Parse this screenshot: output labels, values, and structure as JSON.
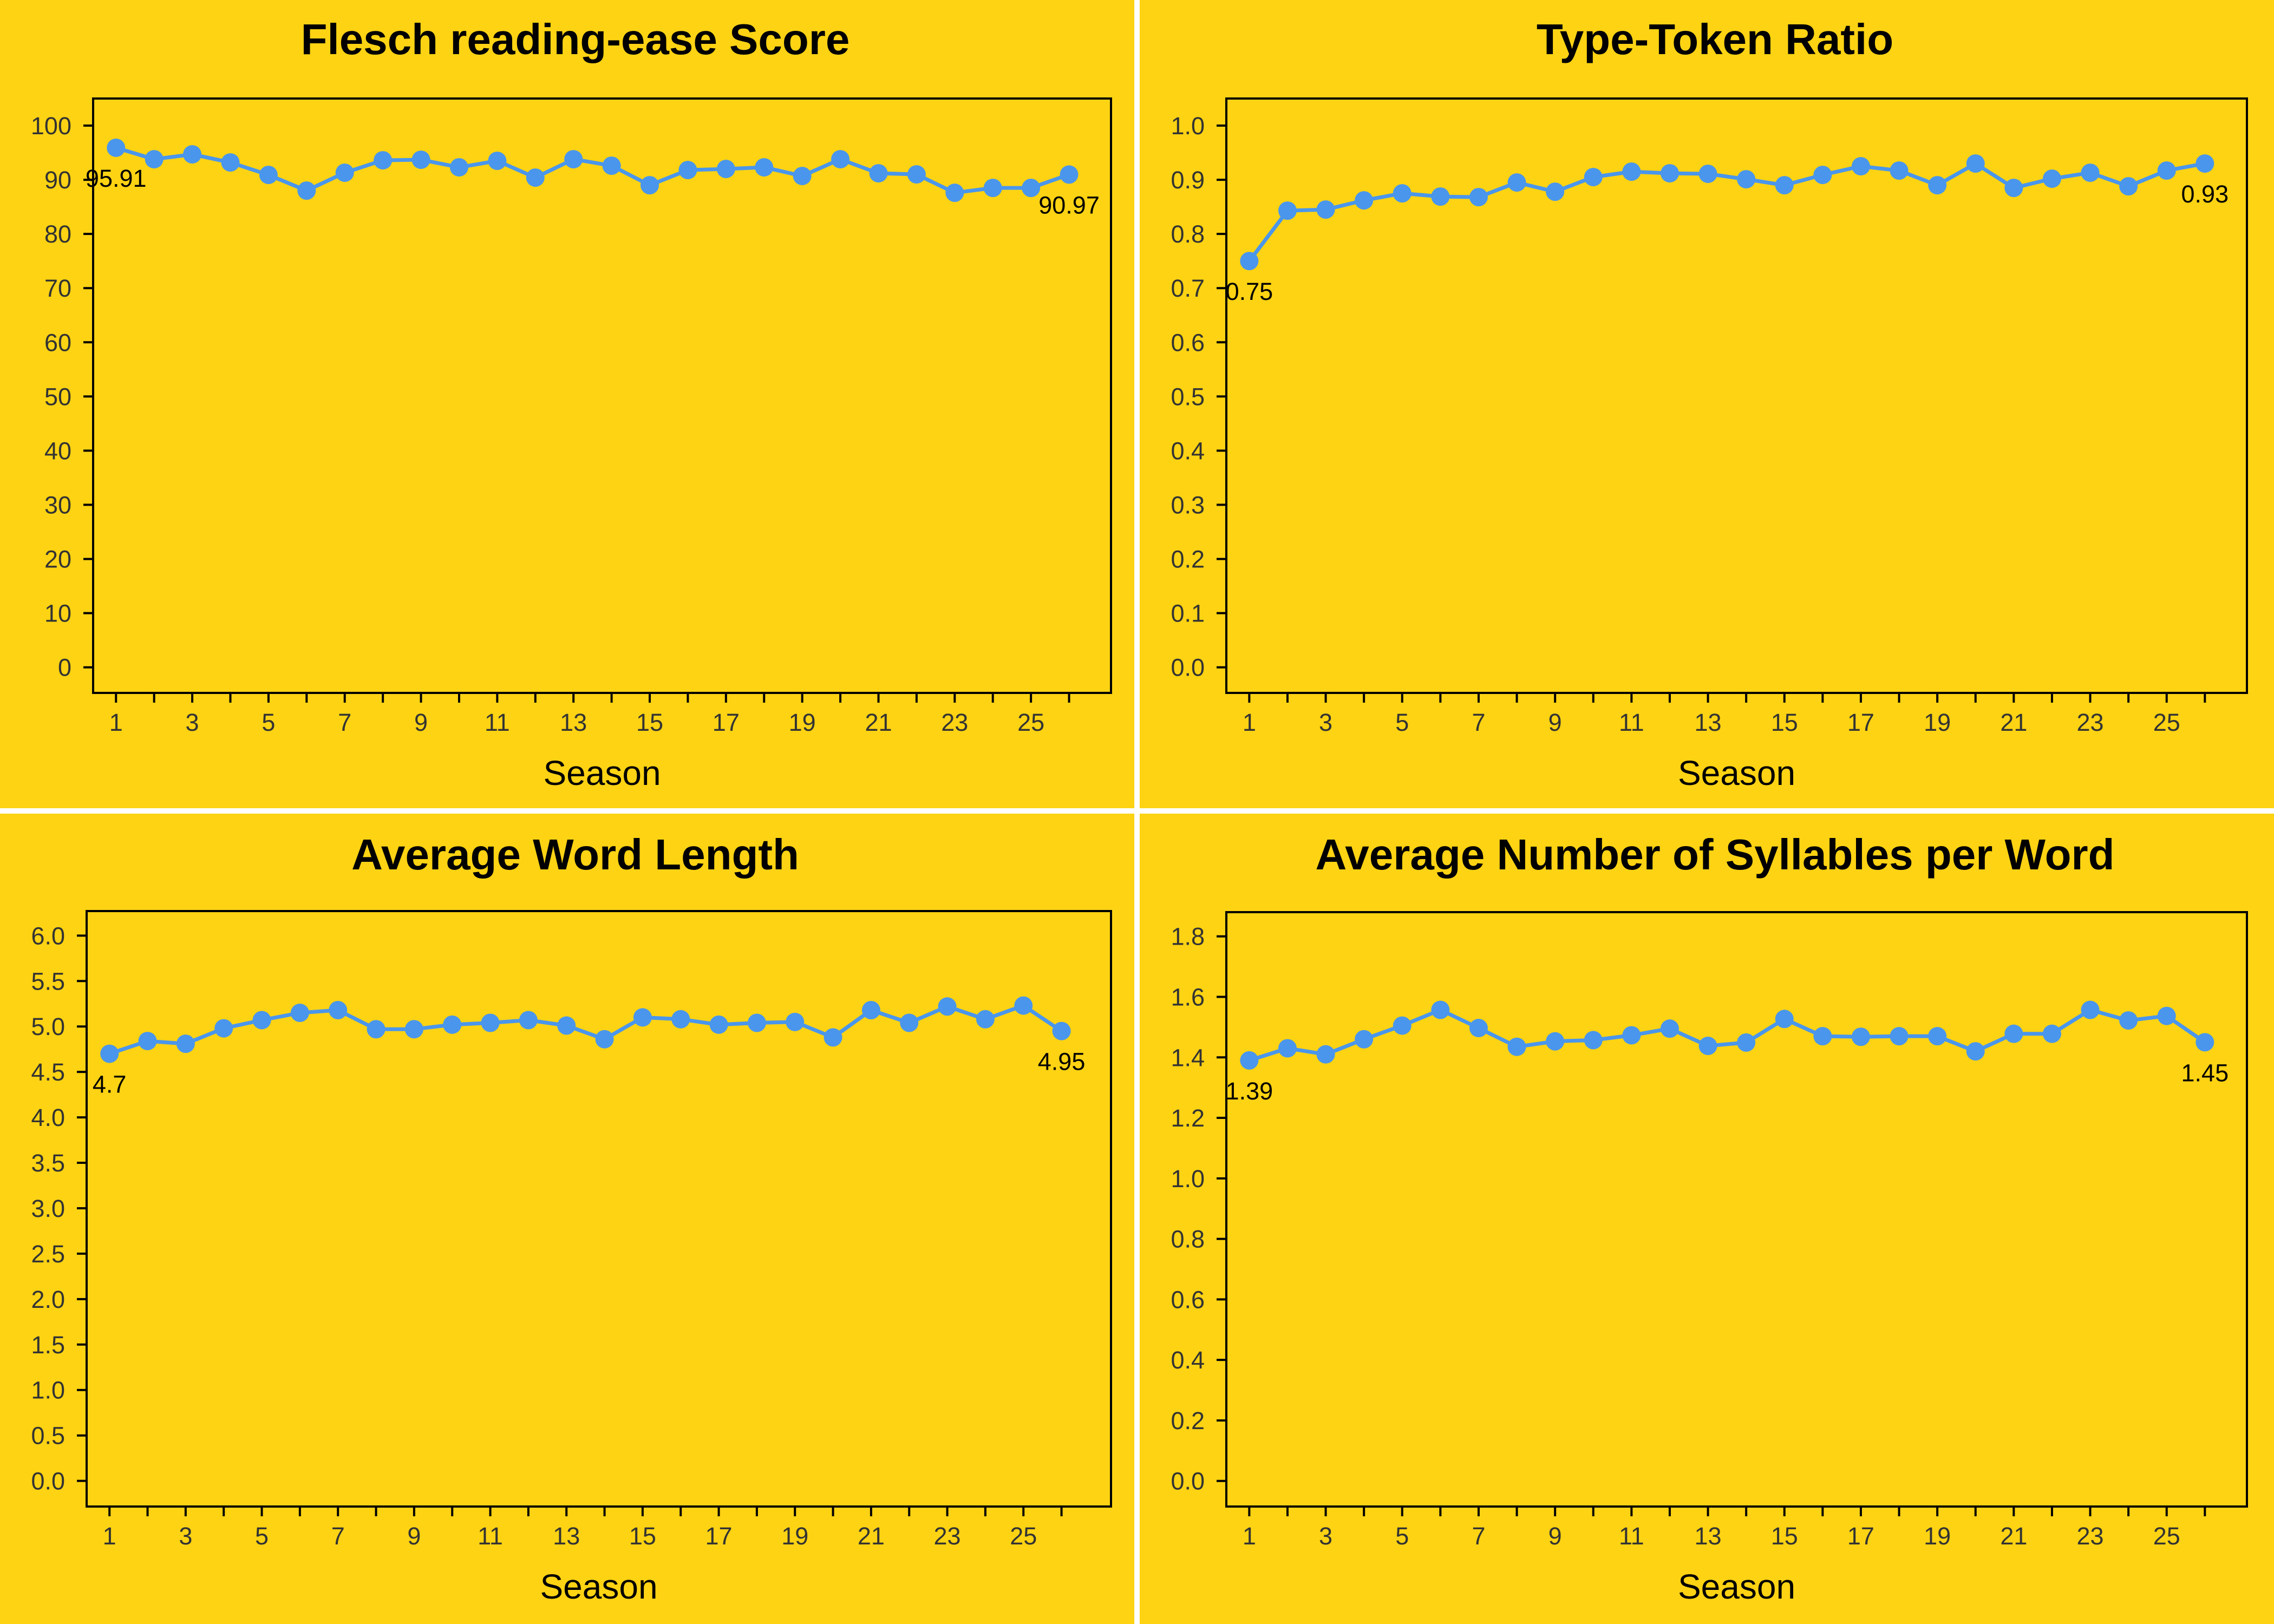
{
  "chart_data": [
    {
      "type": "line",
      "title": "Flesch reading-ease Score",
      "xlabel": "Season",
      "ylabel": "",
      "x": [
        1,
        2,
        3,
        4,
        5,
        6,
        7,
        8,
        9,
        10,
        11,
        12,
        13,
        14,
        15,
        16,
        17,
        18,
        19,
        20,
        21,
        22,
        23,
        24,
        25,
        26
      ],
      "values": [
        95.91,
        93.8,
        94.7,
        93.2,
        90.9,
        88.0,
        91.3,
        93.6,
        93.7,
        92.3,
        93.5,
        90.4,
        93.8,
        92.6,
        89.0,
        91.8,
        92.0,
        92.3,
        90.7,
        93.8,
        91.2,
        91.0,
        87.6,
        88.5,
        88.5,
        90.97
      ],
      "ylim": [
        0,
        100
      ],
      "ymax_axis": 105,
      "yticks": [
        0,
        10,
        20,
        30,
        40,
        50,
        60,
        70,
        80,
        90,
        100
      ],
      "xticks": [
        1,
        3,
        5,
        7,
        9,
        11,
        13,
        15,
        17,
        19,
        21,
        23,
        25
      ],
      "labels": [
        {
          "x": 1,
          "text": "95.91"
        },
        {
          "x": 26,
          "text": "90.97"
        }
      ],
      "color": "#4A96EC"
    },
    {
      "type": "line",
      "title": "Type-Token Ratio",
      "xlabel": "Season",
      "ylabel": "",
      "x": [
        1,
        2,
        3,
        4,
        5,
        6,
        7,
        8,
        9,
        10,
        11,
        12,
        13,
        14,
        15,
        16,
        17,
        18,
        19,
        20,
        21,
        22,
        23,
        24,
        25,
        26
      ],
      "values": [
        0.75,
        0.843,
        0.845,
        0.862,
        0.875,
        0.869,
        0.868,
        0.895,
        0.878,
        0.905,
        0.915,
        0.912,
        0.911,
        0.901,
        0.89,
        0.909,
        0.925,
        0.917,
        0.89,
        0.93,
        0.885,
        0.902,
        0.913,
        0.888,
        0.917,
        0.93
      ],
      "ylim": [
        0,
        1.0
      ],
      "ymax_axis": 1.05,
      "yticks": [
        0.0,
        0.1,
        0.2,
        0.3,
        0.4,
        0.5,
        0.6,
        0.7,
        0.8,
        0.9,
        1.0
      ],
      "xticks": [
        1,
        3,
        5,
        7,
        9,
        11,
        13,
        15,
        17,
        19,
        21,
        23,
        25
      ],
      "labels": [
        {
          "x": 1,
          "text": "0.75"
        },
        {
          "x": 26,
          "text": "0.93"
        }
      ],
      "color": "#4A96EC"
    },
    {
      "type": "line",
      "title": "Average Word Length",
      "xlabel": "Season",
      "ylabel": "",
      "x": [
        1,
        2,
        3,
        4,
        5,
        6,
        7,
        8,
        9,
        10,
        11,
        12,
        13,
        14,
        15,
        16,
        17,
        18,
        19,
        20,
        21,
        22,
        23,
        24,
        25,
        26
      ],
      "values": [
        4.7,
        4.84,
        4.81,
        4.98,
        5.07,
        5.15,
        5.18,
        4.97,
        4.97,
        5.02,
        5.04,
        5.07,
        5.01,
        4.86,
        5.1,
        5.08,
        5.02,
        5.04,
        5.05,
        4.88,
        5.18,
        5.04,
        5.22,
        5.08,
        5.23,
        4.95
      ],
      "ylim": [
        0,
        6.0
      ],
      "ymax_axis": 6.27,
      "yticks": [
        0.0,
        0.5,
        1.0,
        1.5,
        2.0,
        2.5,
        3.0,
        3.5,
        4.0,
        4.5,
        5.0,
        5.5,
        6.0
      ],
      "xticks": [
        1,
        3,
        5,
        7,
        9,
        11,
        13,
        15,
        17,
        19,
        21,
        23,
        25
      ],
      "labels": [
        {
          "x": 1,
          "text": "4.7"
        },
        {
          "x": 26,
          "text": "4.95"
        }
      ],
      "color": "#4A96EC"
    },
    {
      "type": "line",
      "title": "Average Number of Syllables per Word",
      "xlabel": "Season",
      "ylabel": "",
      "x": [
        1,
        2,
        3,
        4,
        5,
        6,
        7,
        8,
        9,
        10,
        11,
        12,
        13,
        14,
        15,
        16,
        17,
        18,
        19,
        20,
        21,
        22,
        23,
        24,
        25,
        26
      ],
      "values": [
        1.39,
        1.43,
        1.41,
        1.46,
        1.505,
        1.557,
        1.497,
        1.435,
        1.453,
        1.457,
        1.473,
        1.495,
        1.438,
        1.449,
        1.527,
        1.47,
        1.468,
        1.47,
        1.47,
        1.42,
        1.478,
        1.478,
        1.557,
        1.522,
        1.537,
        1.45
      ],
      "ylim": [
        0,
        1.8
      ],
      "ymax_axis": 1.88,
      "yticks": [
        0.0,
        0.2,
        0.4,
        0.6,
        0.8,
        1.0,
        1.2,
        1.4,
        1.6,
        1.8
      ],
      "xticks": [
        1,
        3,
        5,
        7,
        9,
        11,
        13,
        15,
        17,
        19,
        21,
        23,
        25
      ],
      "labels": [
        {
          "x": 1,
          "text": "1.39"
        },
        {
          "x": 26,
          "text": "1.45"
        }
      ],
      "color": "#4A96EC"
    }
  ]
}
